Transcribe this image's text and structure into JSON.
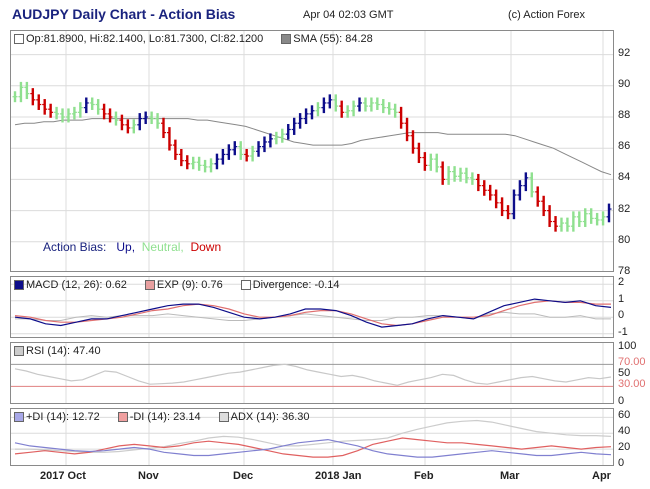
{
  "header": {
    "title": "AUDJPY Daily Chart - Action Bias",
    "date": "Apr 04 02:03 GMT",
    "copyright": "(c) Action Forex"
  },
  "colors": {
    "up": "#0d0d8a",
    "neutral": "#8fe08f",
    "down": "#cc0000",
    "sma": "#888888",
    "grid": "#dcdcdc"
  },
  "main": {
    "ohlc_legend": "Op:81.8900, Hi:82.1400, Lo:81.7300, Cl:82.1200",
    "sma_legend": "SMA (55): 84.28",
    "bias": {
      "label": "Action Bias:",
      "up": "Up,",
      "neutral": "Neutral,",
      "down": "Down"
    }
  },
  "macd": {
    "macd_label": "MACD (12, 26): 0.62",
    "exp_label": "EXP (9): 0.76",
    "div_label": "Divergence: -0.14"
  },
  "rsi": {
    "label": "RSI (14): 47.40",
    "upper_label": "70.00",
    "lower_label": "30.00"
  },
  "adx": {
    "pdi_label": "+DI (14): 12.72",
    "mdi_label": "-DI (14): 23.14",
    "adx_label": "ADX (14): 36.30"
  },
  "chart_data": [
    {
      "type": "bar",
      "title": "AUDJPY Daily Chart - Action Bias",
      "ylim": [
        78,
        93
      ],
      "yticks": [
        "92",
        "90",
        "88",
        "86",
        "84",
        "82",
        "80",
        "78"
      ],
      "xticks": [
        "2017 Oct",
        "Nov",
        "Dec",
        "2018 Jan",
        "Feb",
        "Mar",
        "Apr"
      ],
      "bias_legend": [
        "Up",
        "Neutral",
        "Down"
      ],
      "close": [
        89.3,
        89.9,
        89.5,
        89.1,
        88.8,
        88.5,
        88.3,
        88.2,
        88.0,
        88.2,
        88.3,
        88.6,
        88.9,
        88.8,
        88.5,
        88.2,
        88.0,
        87.8,
        87.5,
        87.3,
        87.5,
        87.9,
        88.0,
        87.9,
        87.6,
        87.0,
        86.2,
        85.6,
        85.2,
        85.0,
        85.1,
        84.9,
        84.8,
        85.0,
        85.3,
        85.6,
        85.9,
        86.1,
        85.6,
        85.5,
        85.8,
        86.1,
        86.4,
        86.6,
        86.7,
        86.9,
        87.2,
        87.6,
        87.9,
        88.2,
        88.4,
        88.6,
        88.9,
        89.1,
        88.7,
        88.3,
        88.4,
        88.7,
        88.9,
        88.7,
        88.9,
        88.8,
        88.6,
        88.5,
        88.3,
        87.6,
        86.8,
        86.0,
        85.4,
        84.9,
        85.3,
        84.8,
        84.0,
        84.5,
        84.2,
        84.4,
        84.1,
        84.0,
        83.6,
        83.3,
        83.0,
        82.5,
        82.0,
        81.8,
        83.0,
        83.6,
        84.1,
        83.2,
        82.6,
        82.0,
        81.3,
        81.0,
        81.2,
        81.0,
        81.6,
        81.3,
        81.8,
        81.5,
        81.4,
        81.6,
        82.1
      ],
      "sma": [
        87.5,
        87.6,
        87.6,
        87.7,
        87.7,
        87.8,
        87.8,
        87.8,
        87.9,
        87.9,
        87.9,
        87.9,
        87.9,
        87.9,
        87.9,
        87.9,
        87.9,
        87.9,
        87.9,
        87.8,
        87.8,
        87.7,
        87.6,
        87.5,
        87.4,
        87.2,
        87.0,
        86.8,
        86.6,
        86.4,
        86.3,
        86.2,
        86.2,
        86.2,
        86.2,
        86.3,
        86.5,
        86.6,
        86.7,
        86.8,
        86.9,
        87.0,
        87.0,
        87.0,
        87.0,
        86.9,
        86.9,
        86.9,
        86.9,
        86.9,
        86.9,
        86.9,
        86.8,
        86.6,
        86.4,
        86.2,
        86.0,
        85.7,
        85.4,
        85.1,
        84.8,
        84.5,
        84.3
      ]
    },
    {
      "type": "line",
      "title": "MACD (12, 26): 0.62",
      "ylim": [
        -1.2,
        2.2
      ],
      "yticks": [
        "2",
        "1",
        "0",
        "-1"
      ],
      "series": [
        {
          "name": "MACD (12, 26): 0.62",
          "values": [
            0.0,
            -0.1,
            -0.4,
            -0.5,
            -0.3,
            -0.1,
            -0.1,
            0.1,
            0.3,
            0.5,
            0.7,
            0.8,
            0.8,
            0.6,
            0.3,
            0.0,
            -0.1,
            0.0,
            0.2,
            0.5,
            0.5,
            0.4,
            0.1,
            -0.3,
            -0.6,
            -0.5,
            -0.4,
            -0.1,
            0.1,
            0.0,
            -0.1,
            0.3,
            0.7,
            0.9,
            1.1,
            1.0,
            0.9,
            1.0,
            0.7,
            0.6
          ]
        },
        {
          "name": "EXP (9): 0.76",
          "values": [
            0.1,
            0.0,
            -0.2,
            -0.3,
            -0.3,
            -0.2,
            -0.1,
            0.0,
            0.2,
            0.4,
            0.5,
            0.7,
            0.8,
            0.7,
            0.5,
            0.2,
            0.0,
            0.0,
            0.1,
            0.3,
            0.4,
            0.4,
            0.2,
            -0.1,
            -0.4,
            -0.5,
            -0.4,
            -0.2,
            0.0,
            0.0,
            0.0,
            0.1,
            0.4,
            0.7,
            0.9,
            1.0,
            0.9,
            0.9,
            0.8,
            0.8
          ]
        },
        {
          "name": "Divergence: -0.14",
          "values": [
            -0.1,
            -0.1,
            -0.2,
            -0.2,
            0.0,
            0.1,
            0.0,
            0.1,
            0.1,
            0.1,
            0.2,
            0.1,
            0.0,
            -0.1,
            -0.2,
            -0.2,
            -0.1,
            0.0,
            0.1,
            0.2,
            0.1,
            0.0,
            -0.1,
            -0.2,
            -0.2,
            0.0,
            0.0,
            0.1,
            0.1,
            0.0,
            -0.1,
            0.2,
            0.3,
            0.2,
            0.2,
            0.0,
            0.0,
            0.1,
            -0.1,
            -0.1
          ]
        }
      ]
    },
    {
      "type": "line",
      "title": "RSI (14): 47.40",
      "ylim": [
        0,
        105
      ],
      "yticks": [
        "100",
        "70.00",
        "50",
        "30.00",
        "0"
      ],
      "series": [
        {
          "name": "RSI (14): 47.40",
          "values": [
            62,
            58,
            52,
            48,
            44,
            40,
            42,
            50,
            58,
            56,
            48,
            40,
            34,
            35,
            36,
            38,
            42,
            46,
            50,
            54,
            56,
            60,
            64,
            68,
            70,
            66,
            60,
            56,
            52,
            48,
            50,
            46,
            40,
            36,
            32,
            38,
            42,
            46,
            52,
            50,
            42,
            36,
            34,
            38,
            42,
            46,
            48,
            44,
            40,
            38,
            42,
            46,
            44,
            47
          ]
        }
      ]
    },
    {
      "type": "line",
      "title": "ADX",
      "ylim": [
        0,
        68
      ],
      "yticks": [
        "60",
        "40",
        "20",
        "0"
      ],
      "series": [
        {
          "name": "+DI (14): 12.72",
          "values": [
            28,
            24,
            22,
            20,
            18,
            17,
            18,
            20,
            22,
            20,
            16,
            14,
            12,
            12,
            14,
            16,
            18,
            20,
            24,
            28,
            30,
            32,
            28,
            24,
            18,
            14,
            12,
            10,
            10,
            12,
            14,
            16,
            18,
            16,
            14,
            12,
            12,
            14,
            16,
            14,
            13
          ]
        },
        {
          "name": "-DI (14): 23.14",
          "values": [
            14,
            16,
            18,
            16,
            14,
            16,
            20,
            24,
            26,
            24,
            22,
            24,
            28,
            30,
            28,
            26,
            22,
            18,
            14,
            12,
            10,
            10,
            12,
            18,
            26,
            30,
            34,
            32,
            30,
            28,
            28,
            26,
            24,
            22,
            20,
            22,
            24,
            22,
            20,
            22,
            23
          ]
        },
        {
          "name": "ADX (14): 36.30",
          "values": [
            20,
            20,
            19,
            18,
            17,
            16,
            16,
            17,
            19,
            21,
            23,
            27,
            30,
            34,
            36,
            35,
            32,
            28,
            24,
            24,
            26,
            28,
            30,
            31,
            32,
            34,
            40,
            45,
            49,
            53,
            55,
            56,
            54,
            50,
            46,
            42,
            40,
            38,
            37,
            37,
            36
          ]
        }
      ]
    }
  ]
}
